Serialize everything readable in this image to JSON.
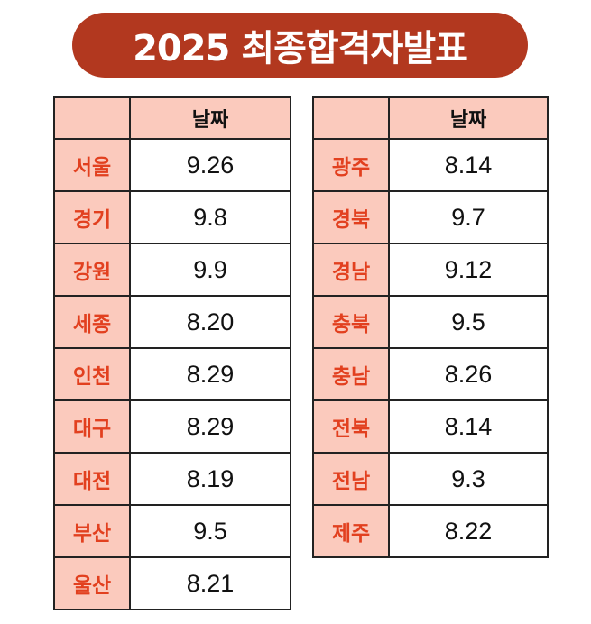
{
  "title": "2025 최종합격자발표",
  "date_header": "날짜",
  "left_table": [
    {
      "region": "서울",
      "date": "9.26"
    },
    {
      "region": "경기",
      "date": "9.8"
    },
    {
      "region": "강원",
      "date": "9.9"
    },
    {
      "region": "세종",
      "date": "8.20"
    },
    {
      "region": "인천",
      "date": "8.29"
    },
    {
      "region": "대구",
      "date": "8.29"
    },
    {
      "region": "대전",
      "date": "8.19"
    },
    {
      "region": "부산",
      "date": "9.5"
    },
    {
      "region": "울산",
      "date": "8.21"
    }
  ],
  "right_table": [
    {
      "region": "광주",
      "date": "8.14"
    },
    {
      "region": "경북",
      "date": "9.7"
    },
    {
      "region": "경남",
      "date": "9.12"
    },
    {
      "region": "충북",
      "date": "9.5"
    },
    {
      "region": "충남",
      "date": "8.26"
    },
    {
      "region": "전북",
      "date": "8.14"
    },
    {
      "region": "전남",
      "date": "9.3"
    },
    {
      "region": "제주",
      "date": "8.22"
    }
  ],
  "colors": {
    "banner": "#b2381f",
    "header_fill": "#fbcabd",
    "region_text": "#e2401f"
  }
}
